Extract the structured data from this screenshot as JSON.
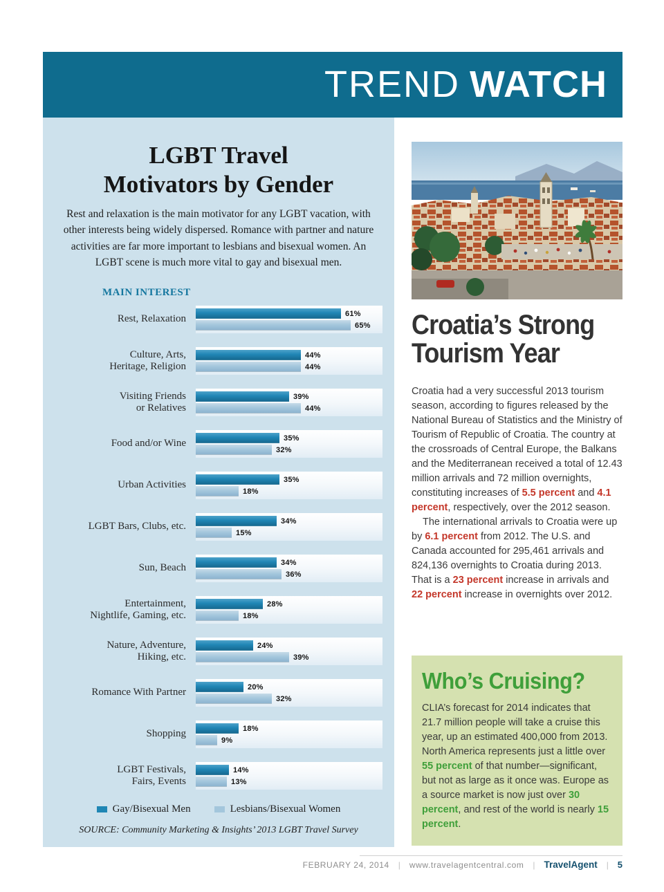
{
  "banner": {
    "word_light": "TREND",
    "word_bold": "WATCH"
  },
  "chart_panel": {
    "title": "LGBT Travel\nMotivators by Gender",
    "intro": "Rest and relaxation is the main motivator for any LGBT vacation, with other interests being widely dispersed. Romance with partner and nature activities are far more important to lesbians and bisexual women. An LGBT scene is much more vital to gay and bisexual men.",
    "axis_label": "MAIN INTEREST",
    "source": "SOURCE: Community Marketing & Insights’ 2013 LGBT Travel Survey"
  },
  "chart_data": {
    "type": "bar",
    "orientation": "horizontal",
    "unit": "%",
    "xlim": [
      0,
      70
    ],
    "legend_position": "bottom",
    "categories": [
      "Rest, Relaxation",
      "Culture, Arts,\nHeritage, Religion",
      "Visiting Friends\nor Relatives",
      "Food and/or Wine",
      "Urban Activities",
      "LGBT Bars, Clubs, etc.",
      "Sun, Beach",
      "Entertainment,\nNightlife, Gaming, etc.",
      "Nature, Adventure,\nHiking, etc.",
      "Romance With Partner",
      "Shopping",
      "LGBT Festivals,\nFairs, Events"
    ],
    "series": [
      {
        "name": "Gay/Bisexual Men",
        "color": "#1f86b4",
        "values": [
          61,
          44,
          39,
          35,
          35,
          34,
          34,
          28,
          24,
          20,
          18,
          14
        ]
      },
      {
        "name": "Lesbians/Bisexual Women",
        "color": "#a3c6dc",
        "values": [
          65,
          44,
          44,
          32,
          18,
          15,
          36,
          18,
          39,
          32,
          9,
          13
        ]
      }
    ]
  },
  "croatia": {
    "headline": "Croatia’s Strong\nTourism Year",
    "paragraph1": [
      {
        "text": "Croatia had a very successful 2013 tourism season, according to figures released by the National Bureau of Statistics and the Ministry of Tourism of Republic of Croatia. The country at the crossroads of Central Europe, the Balkans and the Mediterranean received a total of 12.43 million arrivals and 72 million overnights, constituting increases of "
      },
      {
        "text": "5.5 percent",
        "highlight": true
      },
      {
        "text": " and "
      },
      {
        "text": "4.1 percent",
        "highlight": true
      },
      {
        "text": ", respectively, over the 2012 season."
      }
    ],
    "paragraph2": [
      {
        "text": "The international arrivals to Croatia were up by "
      },
      {
        "text": "6.1 percent",
        "highlight": true
      },
      {
        "text": " from 2012. The U.S. and Canada accounted for 295,461 arrivals and 824,136 overnights to Croatia during 2013. That is a "
      },
      {
        "text": "23 percent",
        "highlight": true
      },
      {
        "text": " increase in arrivals and "
      },
      {
        "text": "22 percent",
        "highlight": true
      },
      {
        "text": " increase in overnights over 2012."
      }
    ]
  },
  "cruising": {
    "headline": "Who’s Cruising?",
    "body": [
      {
        "text": "CLIA’s forecast for 2014 indicates that 21.7 million people will take a cruise this year, up an estimated 400,000 from 2013. North America represents just a little over "
      },
      {
        "text": "55 percent",
        "highlight": true
      },
      {
        "text": " of that number—significant, but not as large as it once was. Europe as a source market is now just over "
      },
      {
        "text": "30 percent",
        "highlight": true
      },
      {
        "text": ", and rest of the world is nearly "
      },
      {
        "text": "15 percent",
        "highlight": true
      },
      {
        "text": "."
      }
    ]
  },
  "footer": {
    "date": "FEBRUARY 24, 2014",
    "separator": "|",
    "url": "www.travelagentcentral.com",
    "brand": "TravelAgent",
    "page": "5"
  }
}
